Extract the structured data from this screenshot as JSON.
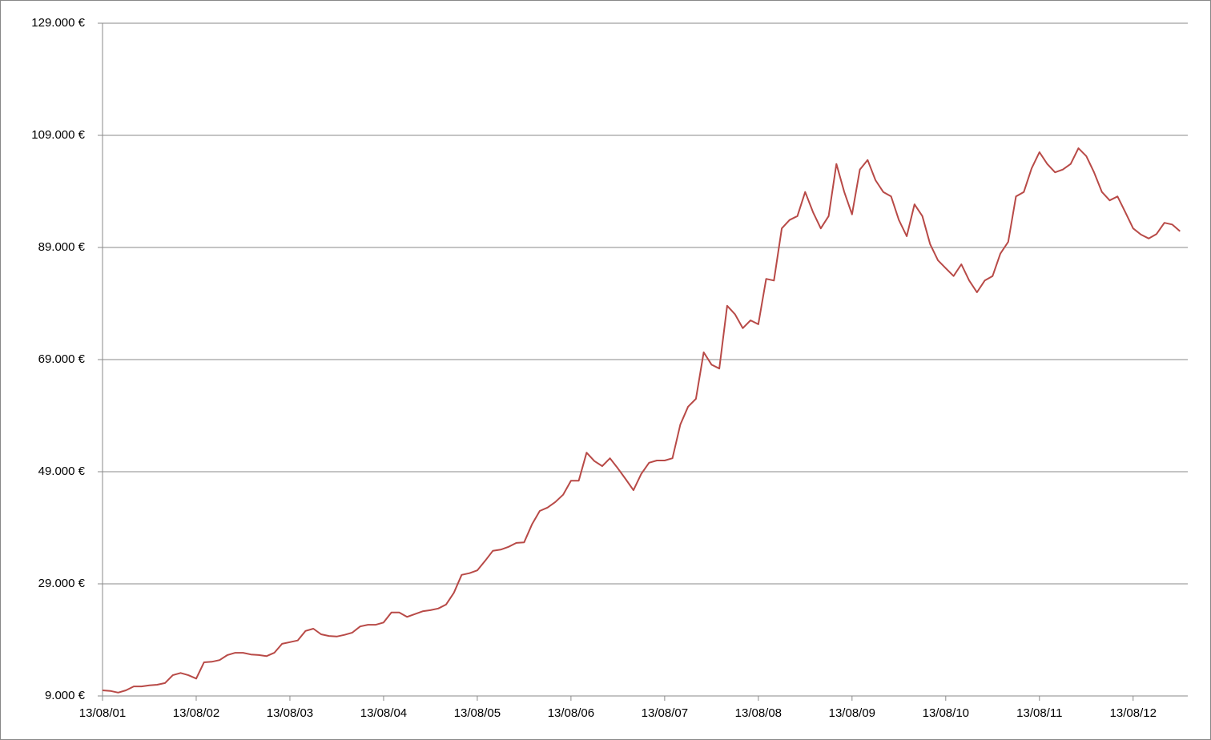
{
  "chart_data": {
    "type": "line",
    "x": [
      "13/08/01",
      "13/09/01",
      "13/10/01",
      "13/11/01",
      "13/12/01",
      "13/01/02",
      "13/02/02",
      "13/03/02",
      "13/04/02",
      "13/05/02",
      "13/06/02",
      "13/07/02",
      "13/08/02",
      "13/09/02",
      "13/10/02",
      "13/11/02",
      "13/12/02",
      "13/01/03",
      "13/02/03",
      "13/03/03",
      "13/04/03",
      "13/05/03",
      "13/06/03",
      "13/07/03",
      "13/08/03",
      "13/09/03",
      "13/10/03",
      "13/11/03",
      "13/12/03",
      "13/01/04",
      "13/02/04",
      "13/03/04",
      "13/04/04",
      "13/05/04",
      "13/06/04",
      "13/07/04",
      "13/08/04",
      "13/09/04",
      "13/10/04",
      "13/11/04",
      "13/12/04",
      "13/01/05",
      "13/02/05",
      "13/03/05",
      "13/04/05",
      "13/05/05",
      "13/06/05",
      "13/07/05",
      "13/08/05",
      "13/09/05",
      "13/10/05",
      "13/11/05",
      "13/12/05",
      "13/01/06",
      "13/02/06",
      "13/03/06",
      "13/04/06",
      "13/05/06",
      "13/06/06",
      "13/07/06",
      "13/08/06",
      "13/09/06",
      "13/10/06",
      "13/11/06",
      "13/12/06",
      "13/01/07",
      "13/02/07",
      "13/03/07",
      "13/04/07",
      "13/05/07",
      "13/06/07",
      "13/07/07",
      "13/08/07",
      "13/09/07",
      "13/10/07",
      "13/11/07",
      "13/12/07",
      "13/01/08",
      "13/02/08",
      "13/03/08",
      "13/04/08",
      "13/05/08",
      "13/06/08",
      "13/07/08",
      "13/08/08",
      "13/09/08",
      "13/10/08",
      "13/11/08",
      "13/12/08",
      "13/01/09",
      "13/02/09",
      "13/03/09",
      "13/04/09",
      "13/05/09",
      "13/06/09",
      "13/07/09",
      "13/08/09",
      "13/09/09",
      "13/10/09",
      "13/11/09",
      "13/12/09",
      "13/01/10",
      "13/02/10",
      "13/03/10",
      "13/04/10",
      "13/05/10",
      "13/06/10",
      "13/07/10",
      "13/08/10",
      "13/09/10",
      "13/10/10",
      "13/11/10",
      "13/12/10",
      "13/01/11",
      "13/02/11",
      "13/03/11",
      "13/04/11",
      "13/05/11",
      "13/06/11",
      "13/07/11",
      "13/08/11",
      "13/09/11",
      "13/10/11",
      "13/11/11",
      "13/12/11",
      "13/01/12",
      "13/02/12",
      "13/03/12",
      "13/04/12",
      "13/05/12",
      "13/06/12",
      "13/07/12",
      "13/08/12",
      "13/09/12",
      "13/10/12",
      "13/11/12",
      "13/12/12",
      "13/01/13",
      "13/02/13"
    ],
    "series": [
      {
        "color": "#b84a47",
        "values": [
          10000,
          9900,
          9600,
          10000,
          10700,
          10700,
          10900,
          11000,
          11300,
          12700,
          13100,
          12700,
          12100,
          15000,
          15100,
          15400,
          16300,
          16700,
          16700,
          16400,
          16300,
          16100,
          16700,
          18300,
          18600,
          18900,
          20600,
          21000,
          20000,
          19700,
          19600,
          19900,
          20300,
          21400,
          21700,
          21700,
          22100,
          23900,
          23900,
          23100,
          23600,
          24100,
          24300,
          24600,
          25300,
          27400,
          30600,
          30900,
          31400,
          33100,
          34900,
          35100,
          35600,
          36300,
          36400,
          39600,
          42000,
          42600,
          43600,
          44900,
          47400,
          47400,
          52400,
          50900,
          50000,
          51400,
          49600,
          47700,
          45700,
          48600,
          50600,
          51000,
          51000,
          51400,
          57400,
          60600,
          62000,
          70300,
          68100,
          67400,
          78600,
          77100,
          74600,
          76000,
          75300,
          83400,
          83100,
          92400,
          93900,
          94600,
          98900,
          95300,
          92400,
          94600,
          103900,
          98900,
          94900,
          102900,
          104600,
          101000,
          98900,
          98100,
          93900,
          91000,
          96700,
          94600,
          89600,
          86700,
          85300,
          83900,
          86000,
          83100,
          81000,
          83100,
          83900,
          87900,
          90000,
          98100,
          98900,
          103100,
          106000,
          103900,
          102400,
          102900,
          103900,
          106700,
          105300,
          102400,
          98900,
          97400,
          98100,
          95300,
          92400,
          91300,
          90600,
          91400,
          93400,
          93100,
          91900
        ]
      }
    ],
    "xlim": [
      "13/08/01",
      "13/03/13"
    ],
    "xticks": [
      "13/08/01",
      "13/08/02",
      "13/08/03",
      "13/08/04",
      "13/08/05",
      "13/08/06",
      "13/08/07",
      "13/08/08",
      "13/08/09",
      "13/08/10",
      "13/08/11",
      "13/08/12"
    ],
    "ylim": [
      9000,
      129000
    ],
    "yticks": [
      {
        "value": 9000,
        "label": "9.000 €"
      },
      {
        "value": 29000,
        "label": "29.000 €"
      },
      {
        "value": 49000,
        "label": "49.000 €"
      },
      {
        "value": 69000,
        "label": "69.000 €"
      },
      {
        "value": 89000,
        "label": "89.000 €"
      },
      {
        "value": 109000,
        "label": "109.000 €"
      },
      {
        "value": 129000,
        "label": "129.000 €"
      }
    ],
    "grid": true
  }
}
